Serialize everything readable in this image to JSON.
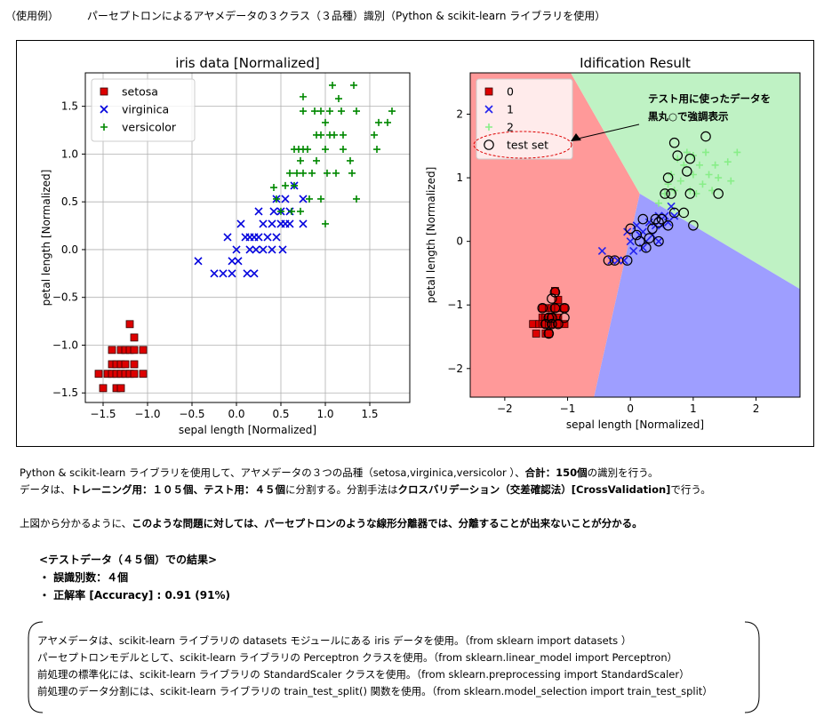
{
  "header": {
    "example_label": "（使用例）",
    "title": "パーセプトロンによるアヤメデータの３クラス（３品種）識別（Python & scikit-learn ライブラリを使用）"
  },
  "chart_data": [
    {
      "type": "scatter",
      "title": "iris data [Normalized]",
      "xlabel": "sepal length [Normalized]",
      "ylabel": "petal length [Normalized]",
      "xlim": [
        -1.7,
        1.95
      ],
      "ylim": [
        -1.6,
        1.85
      ],
      "xticks": [
        -1.5,
        -1.0,
        -0.5,
        0.0,
        0.5,
        1.0,
        1.5
      ],
      "xtick_labels": [
        "−1.5",
        "−1.0",
        "−0.5",
        "0.0",
        "0.5",
        "1.0",
        "1.5"
      ],
      "yticks": [
        -1.5,
        -1.0,
        -0.5,
        0.0,
        0.5,
        1.0,
        1.5
      ],
      "ytick_labels": [
        "−1.5",
        "−1.0",
        "−0.5",
        "0.0",
        "0.5",
        "1.0",
        "1.5"
      ],
      "grid": true,
      "legend_position": "top-left",
      "series": [
        {
          "name": "setosa",
          "marker": "square",
          "color": "#dd0000",
          "points": [
            [
              -1.55,
              -1.3
            ],
            [
              -1.5,
              -1.45
            ],
            [
              -1.45,
              -1.3
            ],
            [
              -1.4,
              -1.05
            ],
            [
              -1.4,
              -1.2
            ],
            [
              -1.4,
              -1.3
            ],
            [
              -1.35,
              -1.2
            ],
            [
              -1.35,
              -1.3
            ],
            [
              -1.35,
              -1.45
            ],
            [
              -1.3,
              -1.05
            ],
            [
              -1.3,
              -1.2
            ],
            [
              -1.3,
              -1.3
            ],
            [
              -1.3,
              -1.45
            ],
            [
              -1.25,
              -1.05
            ],
            [
              -1.25,
              -1.2
            ],
            [
              -1.25,
              -1.3
            ],
            [
              -1.2,
              -1.05
            ],
            [
              -1.2,
              -1.3
            ],
            [
              -1.2,
              -0.78
            ],
            [
              -1.15,
              -0.92
            ],
            [
              -1.15,
              -1.05
            ],
            [
              -1.15,
              -1.2
            ],
            [
              -1.15,
              -1.3
            ],
            [
              -1.05,
              -1.05
            ],
            [
              -1.05,
              -1.3
            ]
          ]
        },
        {
          "name": "virginica",
          "marker": "x",
          "color": "#0000dd",
          "points": [
            [
              -0.43,
              -0.12
            ],
            [
              -0.25,
              -0.25
            ],
            [
              -0.15,
              -0.25
            ],
            [
              -0.05,
              -0.25
            ],
            [
              -0.1,
              0.13
            ],
            [
              -0.05,
              -0.12
            ],
            [
              0.0,
              0.0
            ],
            [
              0.02,
              -0.12
            ],
            [
              0.05,
              0.27
            ],
            [
              0.1,
              0.13
            ],
            [
              0.12,
              -0.25
            ],
            [
              0.15,
              0.0
            ],
            [
              0.15,
              0.13
            ],
            [
              0.2,
              -0.25
            ],
            [
              0.2,
              0.13
            ],
            [
              0.22,
              0.0
            ],
            [
              0.25,
              0.4
            ],
            [
              0.25,
              0.13
            ],
            [
              0.3,
              0.0
            ],
            [
              0.3,
              0.27
            ],
            [
              0.35,
              0.13
            ],
            [
              0.4,
              0.0
            ],
            [
              0.4,
              0.27
            ],
            [
              0.42,
              0.4
            ],
            [
              0.45,
              0.53
            ],
            [
              0.45,
              0.13
            ],
            [
              0.5,
              0.27
            ],
            [
              0.5,
              0.4
            ],
            [
              0.52,
              0.0
            ],
            [
              0.55,
              0.27
            ],
            [
              0.55,
              0.53
            ],
            [
              0.6,
              0.4
            ],
            [
              0.6,
              0.27
            ],
            [
              0.65,
              0.67
            ],
            [
              0.75,
              0.53
            ],
            [
              0.75,
              0.27
            ]
          ]
        },
        {
          "name": "versicolor",
          "marker": "plus",
          "color": "#008800",
          "points": [
            [
              0.42,
              0.65
            ],
            [
              0.45,
              0.53
            ],
            [
              0.5,
              0.4
            ],
            [
              0.55,
              0.67
            ],
            [
              0.6,
              0.8
            ],
            [
              0.62,
              0.4
            ],
            [
              0.65,
              1.05
            ],
            [
              0.65,
              0.67
            ],
            [
              0.68,
              0.8
            ],
            [
              0.7,
              1.05
            ],
            [
              0.72,
              0.93
            ],
            [
              0.72,
              0.4
            ],
            [
              0.75,
              1.05
            ],
            [
              0.75,
              0.8
            ],
            [
              0.75,
              1.45
            ],
            [
              0.75,
              1.6
            ],
            [
              0.8,
              1.05
            ],
            [
              0.82,
              0.53
            ],
            [
              0.85,
              0.8
            ],
            [
              0.88,
              1.45
            ],
            [
              0.9,
              0.93
            ],
            [
              0.9,
              1.2
            ],
            [
              0.95,
              1.45
            ],
            [
              0.95,
              0.53
            ],
            [
              0.95,
              1.2
            ],
            [
              1.0,
              1.05
            ],
            [
              1.0,
              1.33
            ],
            [
              1.0,
              0.27
            ],
            [
              1.02,
              0.8
            ],
            [
              1.05,
              1.2
            ],
            [
              1.05,
              1.45
            ],
            [
              1.08,
              1.72
            ],
            [
              1.1,
              1.2
            ],
            [
              1.12,
              0.8
            ],
            [
              1.15,
              1.58
            ],
            [
              1.18,
              1.45
            ],
            [
              1.2,
              1.05
            ],
            [
              1.2,
              1.2
            ],
            [
              1.28,
              0.93
            ],
            [
              1.3,
              0.8
            ],
            [
              1.32,
              1.72
            ],
            [
              1.35,
              0.53
            ],
            [
              1.35,
              1.45
            ],
            [
              1.55,
              1.2
            ],
            [
              1.58,
              1.05
            ],
            [
              1.6,
              1.33
            ],
            [
              1.7,
              1.33
            ],
            [
              1.75,
              1.45
            ]
          ]
        }
      ]
    },
    {
      "type": "scatter",
      "title": "Idification Result",
      "xlabel": "sepal length [Normalized]",
      "ylabel": "petal length [Normalized]",
      "xlim": [
        -2.55,
        2.7
      ],
      "ylim": [
        -2.45,
        2.65
      ],
      "xticks": [
        -2,
        -1,
        0,
        1,
        2
      ],
      "xtick_labels": [
        "−2",
        "−1",
        "0",
        "1",
        "2"
      ],
      "yticks": [
        -2,
        -1,
        0,
        1,
        2
      ],
      "ytick_labels": [
        "−2",
        "−1",
        "0",
        "1",
        "2"
      ],
      "grid": false,
      "legend_position": "top-left",
      "regions": [
        {
          "class": "0",
          "color": "#ff9999",
          "polygon": [
            [
              -2.55,
              2.65
            ],
            [
              -0.95,
              2.65
            ],
            [
              0.15,
              0.75
            ],
            [
              -0.58,
              -2.45
            ],
            [
              -2.55,
              -2.45
            ]
          ]
        },
        {
          "class": "2",
          "color": "#bff2c4",
          "polygon": [
            [
              -0.95,
              2.65
            ],
            [
              2.7,
              2.65
            ],
            [
              2.7,
              -0.75
            ],
            [
              0.15,
              0.75
            ]
          ]
        },
        {
          "class": "1",
          "color": "#9e9eff",
          "polygon": [
            [
              0.15,
              0.75
            ],
            [
              2.7,
              -0.75
            ],
            [
              2.7,
              -2.45
            ],
            [
              -0.58,
              -2.45
            ]
          ]
        }
      ],
      "series": [
        {
          "name": "0",
          "marker": "square",
          "color": "#dd0000",
          "points": [
            [
              -1.55,
              -1.3
            ],
            [
              -1.5,
              -1.45
            ],
            [
              -1.45,
              -1.3
            ],
            [
              -1.4,
              -1.05
            ],
            [
              -1.4,
              -1.2
            ],
            [
              -1.4,
              -1.3
            ],
            [
              -1.35,
              -1.2
            ],
            [
              -1.35,
              -1.3
            ],
            [
              -1.35,
              -1.45
            ],
            [
              -1.3,
              -1.05
            ],
            [
              -1.3,
              -1.2
            ],
            [
              -1.3,
              -1.3
            ],
            [
              -1.3,
              -1.45
            ],
            [
              -1.25,
              -1.05
            ],
            [
              -1.25,
              -1.2
            ],
            [
              -1.25,
              -1.3
            ],
            [
              -1.2,
              -1.05
            ],
            [
              -1.2,
              -1.3
            ],
            [
              -1.2,
              -0.78
            ],
            [
              -1.15,
              -0.92
            ],
            [
              -1.15,
              -1.05
            ],
            [
              -1.15,
              -1.2
            ],
            [
              -1.15,
              -1.3
            ],
            [
              -1.05,
              -1.05
            ],
            [
              -1.05,
              -1.3
            ]
          ]
        },
        {
          "name": "1",
          "marker": "x",
          "color": "#2222ee",
          "points": [
            [
              -0.45,
              -0.15
            ],
            [
              -0.3,
              -0.3
            ],
            [
              -0.2,
              -0.3
            ],
            [
              -0.1,
              -0.3
            ],
            [
              -0.05,
              0.15
            ],
            [
              0.0,
              0.0
            ],
            [
              0.05,
              -0.15
            ],
            [
              0.1,
              0.25
            ],
            [
              0.15,
              0.1
            ],
            [
              0.2,
              -0.1
            ],
            [
              0.2,
              0.15
            ],
            [
              0.25,
              0.0
            ],
            [
              0.3,
              0.3
            ],
            [
              0.35,
              0.1
            ],
            [
              0.4,
              0.25
            ],
            [
              0.45,
              0.0
            ],
            [
              0.45,
              0.4
            ],
            [
              0.5,
              0.25
            ],
            [
              0.55,
              0.4
            ],
            [
              0.6,
              0.3
            ],
            [
              0.65,
              0.55
            ],
            [
              0.7,
              0.4
            ]
          ]
        },
        {
          "name": "2",
          "marker": "plus",
          "color": "#88ee88",
          "points": [
            [
              0.45,
              0.6
            ],
            [
              0.55,
              0.75
            ],
            [
              0.6,
              0.9
            ],
            [
              0.65,
              1.05
            ],
            [
              0.7,
              0.8
            ],
            [
              0.75,
              1.3
            ],
            [
              0.8,
              0.95
            ],
            [
              0.85,
              1.2
            ],
            [
              0.9,
              1.4
            ],
            [
              0.95,
              0.8
            ],
            [
              1.0,
              1.05
            ],
            [
              1.0,
              1.35
            ],
            [
              1.05,
              0.75
            ],
            [
              1.1,
              1.2
            ],
            [
              1.15,
              0.9
            ],
            [
              1.2,
              1.4
            ],
            [
              1.25,
              1.05
            ],
            [
              1.3,
              0.8
            ],
            [
              1.35,
              1.2
            ],
            [
              1.4,
              1.0
            ],
            [
              1.55,
              1.25
            ],
            [
              1.6,
              0.95
            ],
            [
              1.7,
              1.4
            ]
          ]
        },
        {
          "name": "test set",
          "marker": "circle-open",
          "color": "#000000",
          "points": [
            [
              -1.4,
              -1.05
            ],
            [
              -1.35,
              -1.3
            ],
            [
              -1.3,
              -1.2
            ],
            [
              -1.3,
              -1.45
            ],
            [
              -1.25,
              -0.9
            ],
            [
              -1.25,
              -1.2
            ],
            [
              -1.25,
              -1.3
            ],
            [
              -1.2,
              -1.05
            ],
            [
              -1.2,
              -0.8
            ],
            [
              -1.15,
              -1.3
            ],
            [
              -1.05,
              -1.05
            ],
            [
              -1.05,
              -1.2
            ],
            [
              -0.35,
              -0.3
            ],
            [
              -0.25,
              -0.3
            ],
            [
              -0.05,
              -0.3
            ],
            [
              0.0,
              0.2
            ],
            [
              0.1,
              0.1
            ],
            [
              0.15,
              0.0
            ],
            [
              0.2,
              0.35
            ],
            [
              0.25,
              -0.1
            ],
            [
              0.3,
              0.05
            ],
            [
              0.35,
              0.2
            ],
            [
              0.4,
              0.35
            ],
            [
              0.45,
              0.0
            ],
            [
              0.45,
              0.3
            ],
            [
              0.5,
              0.35
            ],
            [
              0.55,
              0.75
            ],
            [
              0.6,
              0.25
            ],
            [
              0.65,
              0.75
            ],
            [
              0.7,
              0.45
            ],
            [
              0.7,
              1.55
            ],
            [
              0.75,
              1.35
            ],
            [
              0.9,
              1.1
            ],
            [
              0.95,
              1.3
            ],
            [
              0.95,
              0.75
            ],
            [
              1.0,
              0.25
            ],
            [
              1.2,
              1.65
            ],
            [
              1.4,
              0.75
            ],
            [
              0.6,
              1.0
            ],
            [
              0.85,
              0.45
            ]
          ]
        }
      ],
      "annotation": {
        "text_line1": "テスト用に使ったデータを",
        "text_line2": "黒丸○で強調表示"
      }
    }
  ],
  "description": {
    "line1_a": "Python & scikit-learn ライブラリを使用して、アヤメデータの３つの品種（setosa,virginica,versicolor ）、",
    "line1_b": "合計：150個",
    "line1_c": "の識別を行う。",
    "line2_a": "データは、",
    "line2_b": "トレーニング用：１０５個、テスト用：４５個",
    "line2_c": "に分割する。分割手法は",
    "line2_d": "クロスバリデーション（交差確認法）[CrossValidation]",
    "line2_e": "で行う。",
    "line3_a": "上図から分かるように、",
    "line3_b": "このような問題に対しては、パーセプトロンのような線形分離器では、分離することが出来ないことが分かる。"
  },
  "results": {
    "heading": "<テストデータ（４５個）での結果>",
    "misclassified": "・ 誤識別数：４個",
    "accuracy": "・ 正解率 [Accuracy] : 0.91 (91%)"
  },
  "notes": [
    "アヤメデータは、scikit-learn ライブラリの datasets モジュールにある iris データを使用。（from sklearn import datasets ）",
    "パーセプトロンモデルとして、scikit-learn ライブラリの Perceptron クラスを使用。（from sklearn.linear_model import Perceptron）",
    "前処理の標準化には、scikit-learn ライブラリの StandardScaler クラスを使用。（from sklearn.preprocessing import StandardScaler）",
    "前処理のデータ分割には、scikit-learn ライブラリの train_test_split() 関数を使用。（from sklearn.model_selection import train_test_split）"
  ]
}
